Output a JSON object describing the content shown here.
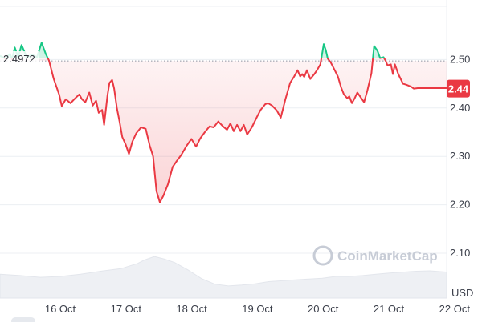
{
  "chart_data": {
    "type": "line",
    "watermark": "CoinMarketCap",
    "currency_unit": "USD",
    "reference_price": "2.4972",
    "current_price": "2.44",
    "ylim": [
      2.05,
      2.6
    ],
    "y_ticks": [
      "2.10",
      "2.20",
      "2.30",
      "2.40",
      "2.50"
    ],
    "x_tick_labels": [
      "16 Oct",
      "17 Oct",
      "18 Oct",
      "19 Oct",
      "20 Oct",
      "21 Oct",
      "22 Oct"
    ],
    "grid": true,
    "colors": {
      "up": "#16c784",
      "down": "#ea3943",
      "grid": "#eceff3",
      "volume": "#eef0f4"
    },
    "x_range": [
      0,
      6.65
    ],
    "price_series": {
      "x": [
        0.0,
        0.08,
        0.15,
        0.18,
        0.22,
        0.27,
        0.32,
        0.4,
        0.48,
        0.55,
        0.62,
        0.68,
        0.73,
        0.8,
        0.88,
        0.92,
        0.98,
        1.05,
        1.12,
        1.18,
        1.22,
        1.27,
        1.33,
        1.38,
        1.43,
        1.47,
        1.52,
        1.55,
        1.6,
        1.63,
        1.67,
        1.7,
        1.74,
        1.78,
        1.82,
        1.87,
        1.92,
        1.97,
        2.03,
        2.1,
        2.17,
        2.23,
        2.28,
        2.33,
        2.38,
        2.43,
        2.5,
        2.57,
        2.63,
        2.7,
        2.78,
        2.85,
        2.92,
        2.98,
        3.05,
        3.12,
        3.18,
        3.25,
        3.32,
        3.38,
        3.43,
        3.48,
        3.53,
        3.58,
        3.63,
        3.68,
        3.75,
        3.82,
        3.88,
        3.95,
        3.99,
        4.05,
        4.12,
        4.18,
        4.25,
        4.32,
        4.38,
        4.43,
        4.47,
        4.5,
        4.53,
        4.57,
        4.62,
        4.68,
        4.72,
        4.77,
        4.82,
        4.85,
        4.88,
        4.92,
        4.97,
        5.03,
        5.08,
        5.12,
        5.17,
        5.2,
        5.24,
        5.28,
        5.32,
        5.37,
        5.42,
        5.47,
        5.53,
        5.57,
        5.62,
        5.66,
        5.71,
        5.74,
        5.77,
        5.82,
        5.85,
        5.88,
        5.93,
        6.0,
        6.05,
        6.12,
        6.16,
        6.22,
        6.27,
        6.33,
        6.38,
        6.44,
        6.48,
        6.52,
        6.56,
        6.6,
        6.65
      ],
      "y": [
        2.508,
        2.502,
        2.512,
        2.5,
        2.525,
        2.505,
        2.53,
        2.505,
        2.51,
        2.505,
        2.535,
        2.512,
        2.498,
        2.46,
        2.428,
        2.404,
        2.418,
        2.41,
        2.42,
        2.428,
        2.418,
        2.412,
        2.432,
        2.405,
        2.415,
        2.39,
        2.396,
        2.365,
        2.426,
        2.452,
        2.458,
        2.44,
        2.4,
        2.372,
        2.34,
        2.325,
        2.305,
        2.33,
        2.348,
        2.36,
        2.357,
        2.322,
        2.3,
        2.228,
        2.205,
        2.218,
        2.242,
        2.278,
        2.29,
        2.303,
        2.322,
        2.336,
        2.32,
        2.337,
        2.35,
        2.362,
        2.36,
        2.372,
        2.362,
        2.355,
        2.368,
        2.352,
        2.365,
        2.352,
        2.365,
        2.345,
        2.36,
        2.38,
        2.396,
        2.408,
        2.41,
        2.405,
        2.395,
        2.38,
        2.418,
        2.452,
        2.465,
        2.478,
        2.465,
        2.47,
        2.464,
        2.478,
        2.46,
        2.47,
        2.478,
        2.49,
        2.532,
        2.52,
        2.502,
        2.495,
        2.482,
        2.465,
        2.442,
        2.428,
        2.42,
        2.424,
        2.41,
        2.42,
        2.432,
        2.422,
        2.412,
        2.436,
        2.472,
        2.528,
        2.518,
        2.503,
        2.505,
        2.498,
        2.488,
        2.49,
        2.47,
        2.49,
        2.47,
        2.45,
        2.448,
        2.444,
        2.44,
        2.441,
        2.441,
        2.441,
        2.441,
        2.441,
        2.441,
        2.441,
        2.441,
        2.441,
        2.441
      ]
    },
    "volume_series": {
      "x": [
        0.0,
        0.3,
        0.6,
        0.9,
        1.2,
        1.5,
        1.8,
        2.05,
        2.15,
        2.3,
        2.45,
        2.6,
        2.8,
        3.0,
        3.2,
        3.4,
        3.6,
        3.8,
        4.0,
        4.2,
        4.4,
        4.6,
        4.8,
        5.0,
        5.2,
        5.4,
        5.6,
        5.8,
        6.0,
        6.2,
        6.4,
        6.65
      ],
      "y": [
        0.55,
        0.52,
        0.48,
        0.5,
        0.55,
        0.62,
        0.68,
        0.8,
        0.88,
        0.96,
        0.9,
        0.82,
        0.65,
        0.45,
        0.32,
        0.28,
        0.3,
        0.33,
        0.38,
        0.4,
        0.42,
        0.44,
        0.46,
        0.5,
        0.5,
        0.52,
        0.55,
        0.58,
        0.6,
        0.62,
        0.63,
        0.6
      ]
    }
  }
}
